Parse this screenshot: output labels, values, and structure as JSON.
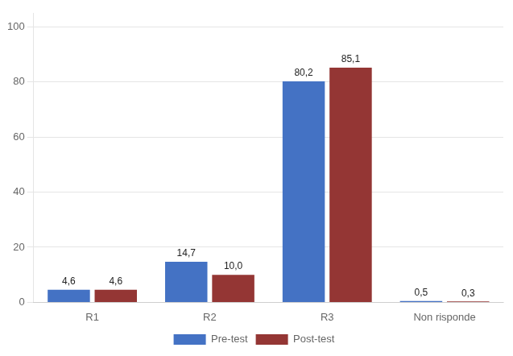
{
  "chart_data": {
    "type": "bar",
    "categories": [
      "R1",
      "R2",
      "R3",
      "Non risponde"
    ],
    "series": [
      {
        "name": "Pre-test",
        "color": "#4472C4",
        "values": [
          4.6,
          14.7,
          80.2,
          0.5
        ],
        "value_labels": [
          "4,6",
          "14,7",
          "80,2",
          "0,5"
        ]
      },
      {
        "name": "Post-test",
        "color": "#943634",
        "values": [
          4.6,
          10.0,
          85.1,
          0.3
        ],
        "value_labels": [
          "4,6",
          "10,0",
          "85,1",
          "0,3"
        ]
      }
    ],
    "ylim": [
      0,
      105
    ],
    "yticks": [
      0,
      20,
      40,
      60,
      80,
      100
    ],
    "grid": true,
    "legend": "bottom",
    "data_labels": true
  }
}
